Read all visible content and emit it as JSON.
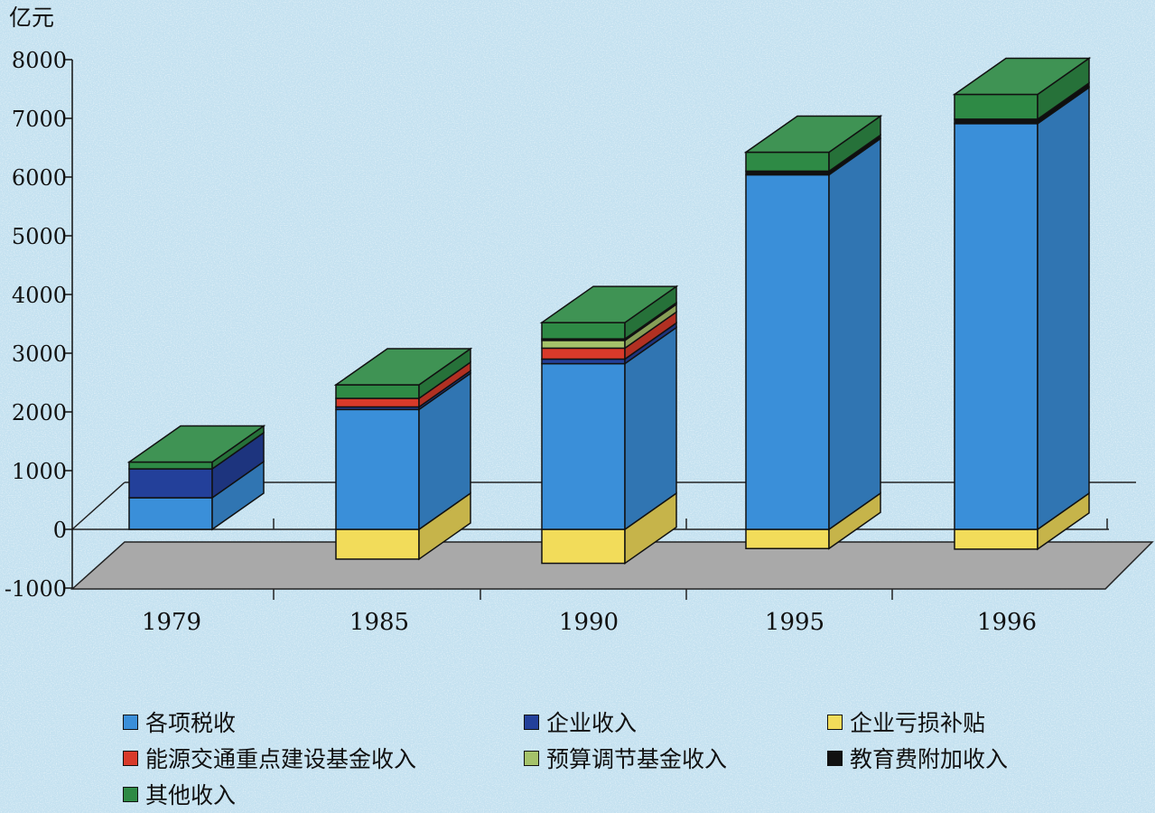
{
  "chart_data": {
    "type": "bar",
    "stacked": true,
    "three_d": true,
    "title": "",
    "ylabel": "亿元",
    "ylim": [
      -1000,
      8000
    ],
    "yticks": [
      8000,
      7000,
      6000,
      5000,
      4000,
      3000,
      2000,
      1000,
      0,
      -1000
    ],
    "categories": [
      "1979",
      "1985",
      "1990",
      "1995",
      "1996"
    ],
    "series": [
      {
        "name": "各项税收",
        "color": "#3a8fd9",
        "values": [
          538,
          2041,
          2822,
          6038,
          6910
        ]
      },
      {
        "name": "企业收入",
        "color": "#23409a",
        "values": [
          492,
          44,
          78,
          0,
          0
        ]
      },
      {
        "name": "企业亏损补贴",
        "color": "#f2dc5a",
        "values": [
          0,
          -507,
          -578,
          -327,
          -337
        ]
      },
      {
        "name": "能源交通重点建设基金收入",
        "color": "#d83a2a",
        "values": [
          0,
          146,
          186,
          0,
          0
        ]
      },
      {
        "name": "预算调节基金收入",
        "color": "#a5c26a",
        "values": [
          0,
          0,
          131,
          0,
          0
        ]
      },
      {
        "name": "教育费附加收入",
        "color": "#111111",
        "values": [
          0,
          0,
          27,
          63,
          76
        ]
      },
      {
        "name": "其他收入",
        "color": "#2e8a45",
        "values": [
          116,
          230,
          278,
          322,
          422
        ]
      }
    ],
    "legend_position": "bottom"
  }
}
